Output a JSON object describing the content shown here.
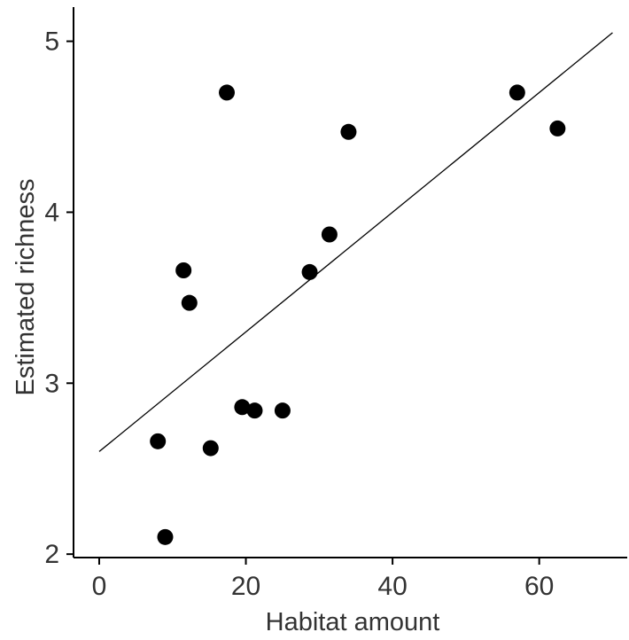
{
  "chart_data": {
    "type": "scatter",
    "xlabel": "Habitat amount",
    "ylabel": "Estimated richness",
    "xlim": [
      -3.5,
      72
    ],
    "ylim": [
      1.98,
      5.2
    ],
    "xticks": [
      0,
      20,
      40,
      60
    ],
    "yticks": [
      2,
      3,
      4,
      5
    ],
    "xtick_labels": [
      "0",
      "20",
      "40",
      "60"
    ],
    "ytick_labels": [
      "2",
      "3",
      "4",
      "5"
    ],
    "points": [
      {
        "x": 8.0,
        "y": 2.66
      },
      {
        "x": 9.0,
        "y": 2.1
      },
      {
        "x": 11.5,
        "y": 3.66
      },
      {
        "x": 12.3,
        "y": 3.47
      },
      {
        "x": 15.2,
        "y": 2.62
      },
      {
        "x": 17.4,
        "y": 4.7
      },
      {
        "x": 19.5,
        "y": 2.86
      },
      {
        "x": 21.2,
        "y": 2.84
      },
      {
        "x": 25.0,
        "y": 2.84
      },
      {
        "x": 28.7,
        "y": 3.65
      },
      {
        "x": 31.4,
        "y": 3.87
      },
      {
        "x": 34.0,
        "y": 4.47
      },
      {
        "x": 57.0,
        "y": 4.7
      },
      {
        "x": 62.5,
        "y": 4.49
      }
    ],
    "fit_line": {
      "x": [
        0,
        70
      ],
      "y": [
        2.6,
        5.05
      ]
    },
    "point_color": "#000000",
    "line_color": "#000000",
    "grid": false,
    "legend": "none"
  }
}
